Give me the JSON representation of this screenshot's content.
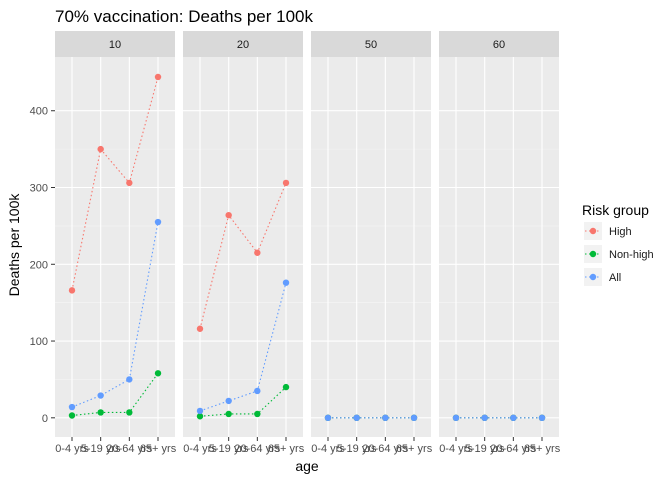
{
  "chart_data": {
    "type": "line",
    "title": "70% vaccination: Deaths per 100k",
    "xlabel": "age",
    "ylabel": "Deaths per 100k",
    "ylim": [
      -25,
      470
    ],
    "yticks": [
      0,
      100,
      200,
      300,
      400
    ],
    "categories": [
      "0-4 yrs",
      "5-19 yrs",
      "20-64 yrs",
      "65+ yrs"
    ],
    "grid": true,
    "line_style": "dotted",
    "legend": {
      "title": "Risk group",
      "placement": "right"
    },
    "series_colors": {
      "High": "#F8766D",
      "Non-high": "#00BA38",
      "All": "#619CFF"
    },
    "panels": [
      {
        "label": "10",
        "series": [
          {
            "name": "High",
            "values": [
              166,
              350,
              306,
              444
            ]
          },
          {
            "name": "Non-high",
            "values": [
              3,
              7,
              7,
              58
            ]
          },
          {
            "name": "All",
            "values": [
              14,
              29,
              50,
              255
            ]
          }
        ]
      },
      {
        "label": "20",
        "series": [
          {
            "name": "High",
            "values": [
              116,
              264,
              215,
              306
            ]
          },
          {
            "name": "Non-high",
            "values": [
              2,
              5,
              5,
              40
            ]
          },
          {
            "name": "All",
            "values": [
              9,
              22,
              35,
              176
            ]
          }
        ]
      },
      {
        "label": "50",
        "series": [
          {
            "name": "High",
            "values": [
              0,
              0,
              0,
              0
            ]
          },
          {
            "name": "Non-high",
            "values": [
              0,
              0,
              0,
              0
            ]
          },
          {
            "name": "All",
            "values": [
              0,
              0,
              0,
              0
            ]
          }
        ]
      },
      {
        "label": "60",
        "series": [
          {
            "name": "High",
            "values": [
              0,
              0,
              0,
              0
            ]
          },
          {
            "name": "Non-high",
            "values": [
              0,
              0,
              0,
              0
            ]
          },
          {
            "name": "All",
            "values": [
              0,
              0,
              0,
              0
            ]
          }
        ]
      }
    ]
  }
}
